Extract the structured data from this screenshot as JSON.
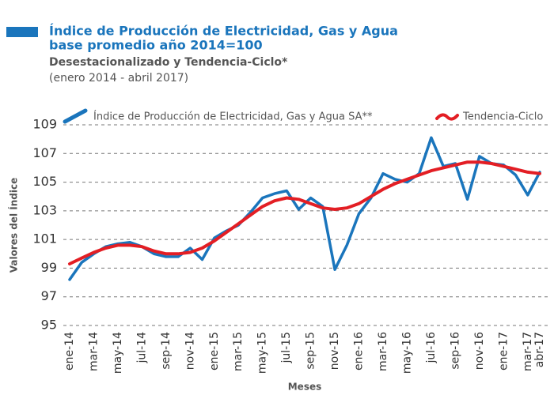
{
  "chart_data": {
    "type": "line",
    "title": "Índice de Producción de Electricidad, Gas y Agua",
    "title_line2": "base promedio año 2014=100",
    "subtitle": "Desestacionalizado y Tendencia-Ciclo*",
    "subtitle_line2": "(enero 2014 - abril 2017)",
    "y_label": "Valores del Índice",
    "x_label": "Meses",
    "categories": [
      "ene-14",
      null,
      "mar-14",
      null,
      "may-14",
      null,
      "jul-14",
      null,
      "sep-14",
      null,
      "nov-14",
      null,
      "ene-15",
      null,
      "mar-15",
      null,
      "may-15",
      null,
      "jul-15",
      null,
      "sep-15",
      null,
      "nov-15",
      null,
      "ene-16",
      null,
      "mar-16",
      null,
      "may-16",
      null,
      "jul-16",
      null,
      "sep-16",
      null,
      "nov-16",
      null,
      "ene-17",
      null,
      "mar-17",
      "abr-17"
    ],
    "series": [
      {
        "name": "Índice de Producción de Electricidad, Gas y Agua SA**",
        "color": "#1a75bc",
        "values": [
          98.2,
          99.4,
          100.0,
          100.5,
          100.7,
          100.8,
          100.5,
          100.0,
          99.8,
          99.8,
          100.4,
          99.6,
          101.1,
          101.6,
          102.0,
          102.9,
          103.9,
          104.2,
          104.4,
          103.1,
          103.9,
          103.3,
          98.9,
          100.6,
          102.8,
          103.9,
          105.6,
          105.2,
          105.0,
          105.6,
          108.1,
          106.1,
          106.3,
          103.8,
          106.8,
          106.3,
          106.2,
          105.5,
          104.1,
          105.7
        ]
      },
      {
        "name": "Tendencia-Ciclo",
        "color": "#e31e24",
        "values": [
          99.3,
          99.7,
          100.1,
          100.4,
          100.6,
          100.6,
          100.5,
          100.2,
          100.0,
          100.0,
          100.1,
          100.4,
          100.9,
          101.5,
          102.1,
          102.7,
          103.3,
          103.7,
          103.9,
          103.8,
          103.5,
          103.2,
          103.1,
          103.2,
          103.5,
          104.0,
          104.5,
          104.9,
          105.2,
          105.5,
          105.8,
          106.0,
          106.2,
          106.4,
          106.4,
          106.3,
          106.1,
          105.9,
          105.7,
          105.6
        ]
      }
    ],
    "ylim": [
      95,
      109
    ],
    "yticks": [
      95,
      97,
      99,
      101,
      103,
      105,
      107,
      109
    ],
    "grid": true
  }
}
